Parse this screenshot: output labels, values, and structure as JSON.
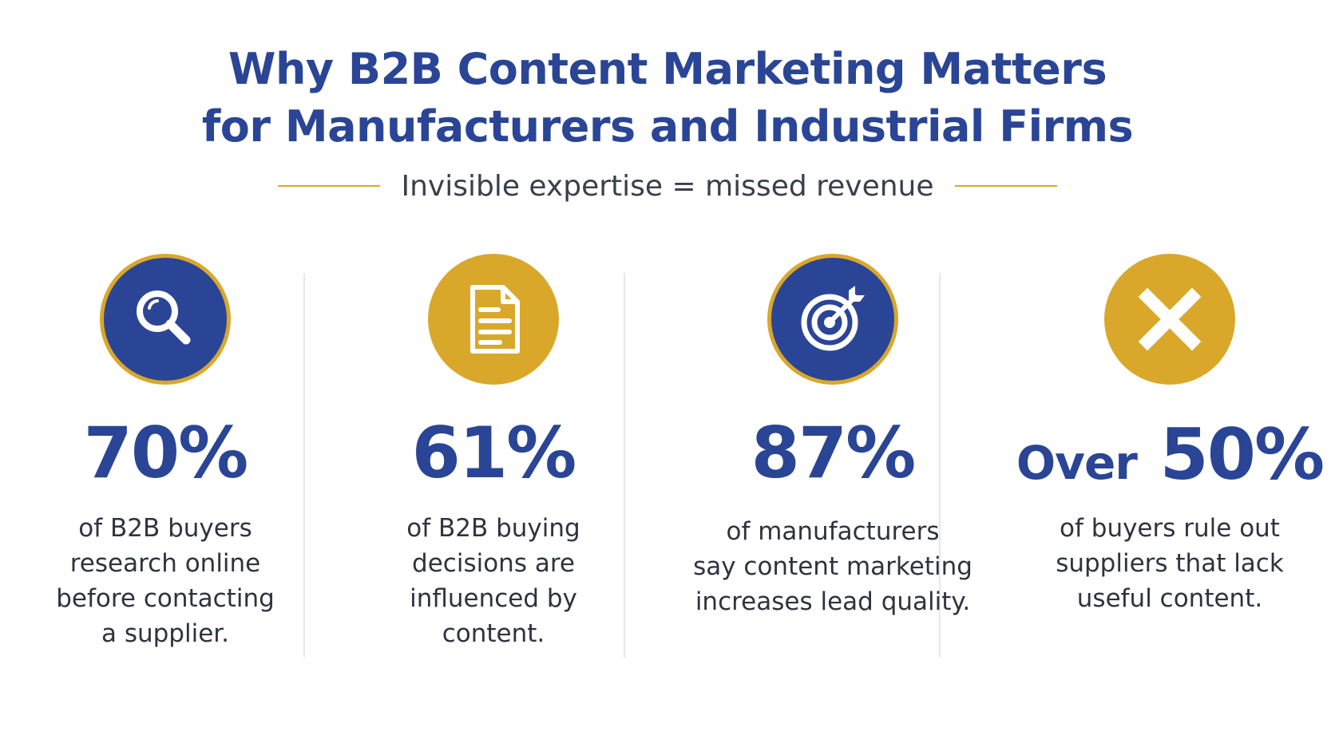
{
  "header": {
    "title_line1": "Why B2B Content Marketing Matters",
    "title_line2": "for Manufacturers and Industrial Firms",
    "subtitle": "Invisible expertise = missed revenue"
  },
  "stats": [
    {
      "icon": "magnifying-glass-icon",
      "circle_color": "#2b4596",
      "ring_color": "#d9a82a",
      "value": "70%",
      "desc_lines": [
        "of B2B buyers",
        "research online",
        "before contacting",
        "a supplier."
      ]
    },
    {
      "icon": "document-icon",
      "circle_color": "#d9a82a",
      "value": "61%",
      "desc_lines": [
        "of B2B buying",
        "decisions are",
        "influenced by",
        "content."
      ]
    },
    {
      "icon": "target-icon",
      "circle_color": "#2b4596",
      "ring_color": "#d9a82a",
      "value": "87%",
      "desc_lines": [
        "of manufacturers",
        "say content marketing",
        "increases lead quality."
      ]
    },
    {
      "icon": "x-icon",
      "circle_color": "#d9a82a",
      "value_prefix": "Over",
      "value": "50%",
      "desc_lines": [
        "of buyers rule out",
        "suppliers that lack",
        "useful content."
      ]
    }
  ],
  "colors": {
    "primary_blue": "#2a4596",
    "accent_gold": "#d9a82a",
    "body_text": "#2f3340"
  }
}
